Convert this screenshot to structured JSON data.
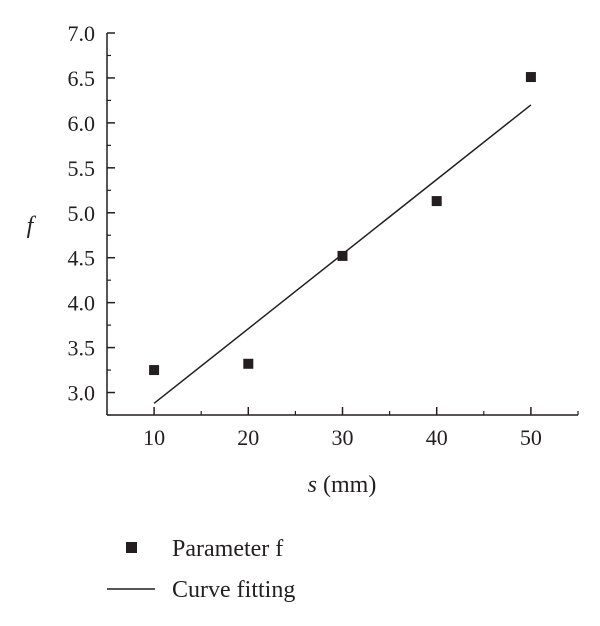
{
  "chart_data": {
    "type": "scatter",
    "title": "",
    "xlabel": {
      "var": "s",
      "unit": " (mm)"
    },
    "ylabel": "f",
    "xlim": [
      5,
      55
    ],
    "ylim": [
      2.75,
      7.0
    ],
    "xticks": [
      10,
      20,
      30,
      40,
      50
    ],
    "xtick_labels": [
      "10",
      "20",
      "30",
      "40",
      "50"
    ],
    "yticks": [
      3.0,
      3.5,
      4.0,
      4.5,
      5.0,
      5.5,
      6.0,
      6.5,
      7.0
    ],
    "ytick_labels": [
      "3.0",
      "3.5",
      "4.0",
      "4.5",
      "5.0",
      "5.5",
      "6.0",
      "6.5",
      "7.0"
    ],
    "grid": false,
    "legend_position": "bottom-left",
    "series": [
      {
        "name": "Parameter f",
        "kind": "scatter",
        "marker": "square",
        "color": "#231f20",
        "x": [
          10,
          20,
          30,
          40,
          50
        ],
        "y": [
          3.25,
          3.32,
          4.52,
          5.13,
          6.51
        ]
      },
      {
        "name": "Curve fitting",
        "kind": "line",
        "color": "#231f20",
        "x": [
          10,
          50
        ],
        "y": [
          2.88,
          6.2
        ]
      }
    ]
  }
}
